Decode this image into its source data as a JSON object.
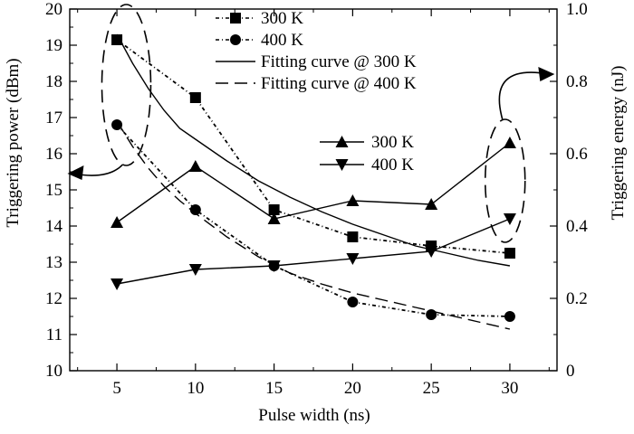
{
  "chart_data": {
    "type": "line",
    "xlabel": "Pulse width (ns)",
    "ylabel_left": "Triggering power (dBm)",
    "ylabel_right": "Triggering energy (nJ)",
    "xlim": [
      2,
      33
    ],
    "ylim_left": [
      10,
      20
    ],
    "ylim_right": [
      0,
      1.0
    ],
    "xticks": [
      5,
      10,
      15,
      20,
      25,
      30
    ],
    "yticks_left": [
      10,
      11,
      12,
      13,
      14,
      15,
      16,
      17,
      18,
      19,
      20
    ],
    "yticks_right": [
      0,
      0.2,
      0.4,
      0.6,
      0.8,
      1.0
    ],
    "ytick_labels_right": [
      "0",
      "0.2",
      "0.4",
      "0.6",
      "0.8",
      "1.0"
    ],
    "grid": false,
    "series": [
      {
        "name": "300 K",
        "axis": "left",
        "marker": "square",
        "line": "dash-dot",
        "x": [
          5,
          10,
          15,
          20,
          25,
          30
        ],
        "y": [
          19.15,
          17.55,
          14.45,
          13.7,
          13.45,
          13.25
        ]
      },
      {
        "name": "400 K",
        "axis": "left",
        "marker": "circle",
        "line": "dash-dot",
        "x": [
          5,
          10,
          15,
          20,
          25,
          30
        ],
        "y": [
          16.8,
          14.45,
          12.9,
          11.9,
          11.55,
          11.5
        ]
      },
      {
        "name": "Fitting curve @ 300 K",
        "axis": "left",
        "marker": "none",
        "line": "solid",
        "x": [
          5,
          6,
          7,
          8,
          9,
          10,
          12,
          14,
          16,
          18,
          20,
          22,
          24,
          26,
          28,
          30
        ],
        "y": [
          19.3,
          18.5,
          17.8,
          17.2,
          16.7,
          16.4,
          15.8,
          15.25,
          14.8,
          14.4,
          14.05,
          13.75,
          13.45,
          13.25,
          13.05,
          12.9
        ]
      },
      {
        "name": "Fitting curve @ 400 K",
        "axis": "left",
        "marker": "none",
        "line": "dashed",
        "x": [
          5,
          6,
          7,
          8,
          9,
          10,
          12,
          14,
          16,
          18,
          20,
          22,
          24,
          26,
          28,
          30
        ],
        "y": [
          16.9,
          16.2,
          15.6,
          15.1,
          14.7,
          14.35,
          13.7,
          13.15,
          12.7,
          12.4,
          12.15,
          11.95,
          11.75,
          11.55,
          11.35,
          11.15
        ]
      },
      {
        "name": "300 K",
        "axis": "right",
        "marker": "triangle-up",
        "line": "solid",
        "x": [
          5,
          10,
          15,
          20,
          25,
          30
        ],
        "y": [
          0.41,
          0.565,
          0.42,
          0.47,
          0.46,
          0.63
        ]
      },
      {
        "name": "400 K",
        "axis": "right",
        "marker": "triangle-down",
        "line": "solid",
        "x": [
          5,
          10,
          15,
          20,
          25,
          30
        ],
        "y": [
          0.24,
          0.28,
          0.29,
          0.31,
          0.33,
          0.42
        ]
      }
    ],
    "legend_left_placement": "top",
    "legend_right_placement": "middle-right"
  }
}
